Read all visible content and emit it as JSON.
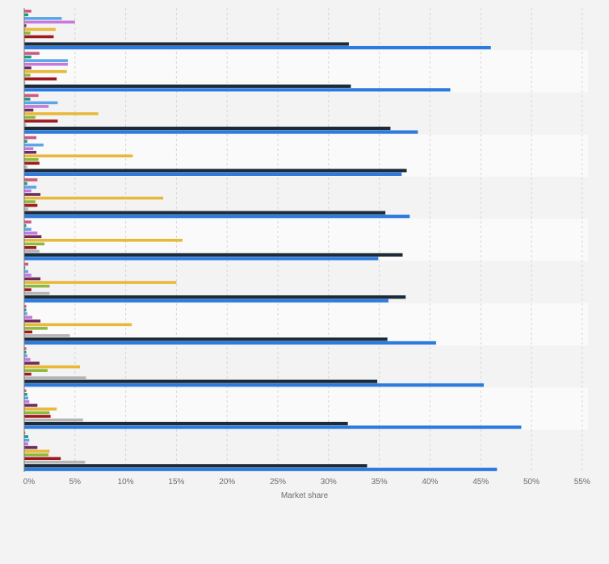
{
  "chart_data": {
    "type": "bar",
    "orientation": "horizontal",
    "xlabel": "Market share",
    "xlim": [
      0,
      55
    ],
    "x_ticks": [
      0,
      5,
      10,
      15,
      20,
      25,
      30,
      35,
      40,
      45,
      50,
      55
    ],
    "x_tick_labels": [
      "0%",
      "5%",
      "10%",
      "15%",
      "20%",
      "25%",
      "30%",
      "35%",
      "40%",
      "45%",
      "50%",
      "55%"
    ],
    "grid": true,
    "legend": "none",
    "categories": [
      "",
      "",
      "",
      "",
      "",
      "",
      "",
      "",
      "",
      "",
      ""
    ],
    "series": [
      {
        "color": "#d1587f",
        "values": [
          0.7,
          1.5,
          1.4,
          1.2,
          1.3,
          0.7,
          0.4,
          0.2,
          0.2,
          0.2,
          0.1
        ]
      },
      {
        "color": "#1a9c80",
        "values": [
          0.4,
          0.7,
          0.6,
          0.3,
          0.3,
          0.2,
          0.1,
          0.2,
          0.2,
          0.3,
          0.4
        ]
      },
      {
        "color": "#5ba6e6",
        "values": [
          3.7,
          4.3,
          3.3,
          1.9,
          1.2,
          0.7,
          0.4,
          0.3,
          0.3,
          0.4,
          0.5
        ]
      },
      {
        "color": "#c678dc",
        "values": [
          5.0,
          4.3,
          2.4,
          0.9,
          0.7,
          1.3,
          0.7,
          0.8,
          0.6,
          0.5,
          0.4
        ]
      },
      {
        "color": "#6b2d5c",
        "values": [
          0.2,
          0.7,
          0.9,
          1.2,
          1.6,
          1.7,
          1.6,
          1.6,
          1.5,
          1.3,
          1.3
        ]
      },
      {
        "color": "#e8b83a",
        "values": [
          3.1,
          4.2,
          7.3,
          10.7,
          13.7,
          15.6,
          15.0,
          10.6,
          5.5,
          3.2,
          2.5
        ]
      },
      {
        "color": "#8dba3c",
        "values": [
          0.6,
          0.6,
          1.1,
          1.4,
          1.1,
          2.0,
          2.5,
          2.3,
          2.3,
          2.5,
          2.4
        ]
      },
      {
        "color": "#9e1a1f",
        "values": [
          2.9,
          3.2,
          3.3,
          1.5,
          1.3,
          1.2,
          0.7,
          0.8,
          0.7,
          2.6,
          3.6
        ]
      },
      {
        "color": "#b5b5b5",
        "values": [
          0.1,
          0.1,
          0.2,
          0.3,
          0.4,
          1.5,
          2.5,
          4.5,
          6.1,
          5.8,
          6.0
        ]
      },
      {
        "color": "#1c2b3a",
        "values": [
          32.0,
          32.2,
          36.1,
          37.7,
          35.6,
          37.3,
          37.6,
          35.8,
          34.8,
          31.9,
          33.8
        ]
      },
      {
        "color": "#2d7bde",
        "values": [
          46.0,
          42.0,
          38.8,
          37.2,
          38.0,
          34.9,
          35.9,
          40.6,
          45.3,
          49.0,
          46.6
        ]
      }
    ]
  }
}
